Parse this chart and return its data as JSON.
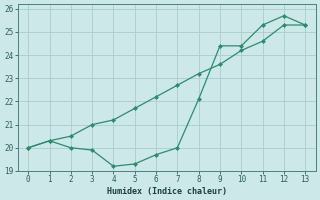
{
  "xlabel": "Humidex (Indice chaleur)",
  "line1_x": [
    0,
    1,
    2,
    3,
    4,
    5,
    6,
    7,
    8,
    9,
    10,
    11,
    12,
    13
  ],
  "line1_y": [
    20.0,
    20.3,
    20.0,
    19.9,
    19.2,
    19.3,
    19.7,
    20.0,
    22.1,
    24.4,
    24.4,
    25.3,
    25.7,
    25.3
  ],
  "line2_x": [
    0,
    1,
    2,
    3,
    4,
    5,
    6,
    7,
    8,
    9,
    10,
    11,
    12,
    13
  ],
  "line2_y": [
    20.0,
    20.3,
    20.5,
    21.0,
    21.2,
    21.7,
    22.2,
    22.7,
    23.2,
    23.6,
    24.2,
    24.6,
    25.3,
    25.3
  ],
  "line_color": "#2e8b6e",
  "bg_color": "#cce8e8",
  "grid_color": "#aacccc",
  "xlim": [
    -0.5,
    13.5
  ],
  "ylim": [
    19.0,
    26.2
  ],
  "yticks": [
    19,
    20,
    21,
    22,
    23,
    24,
    25,
    26
  ],
  "xticks": [
    0,
    1,
    2,
    3,
    4,
    5,
    6,
    7,
    8,
    9,
    10,
    11,
    12,
    13
  ]
}
